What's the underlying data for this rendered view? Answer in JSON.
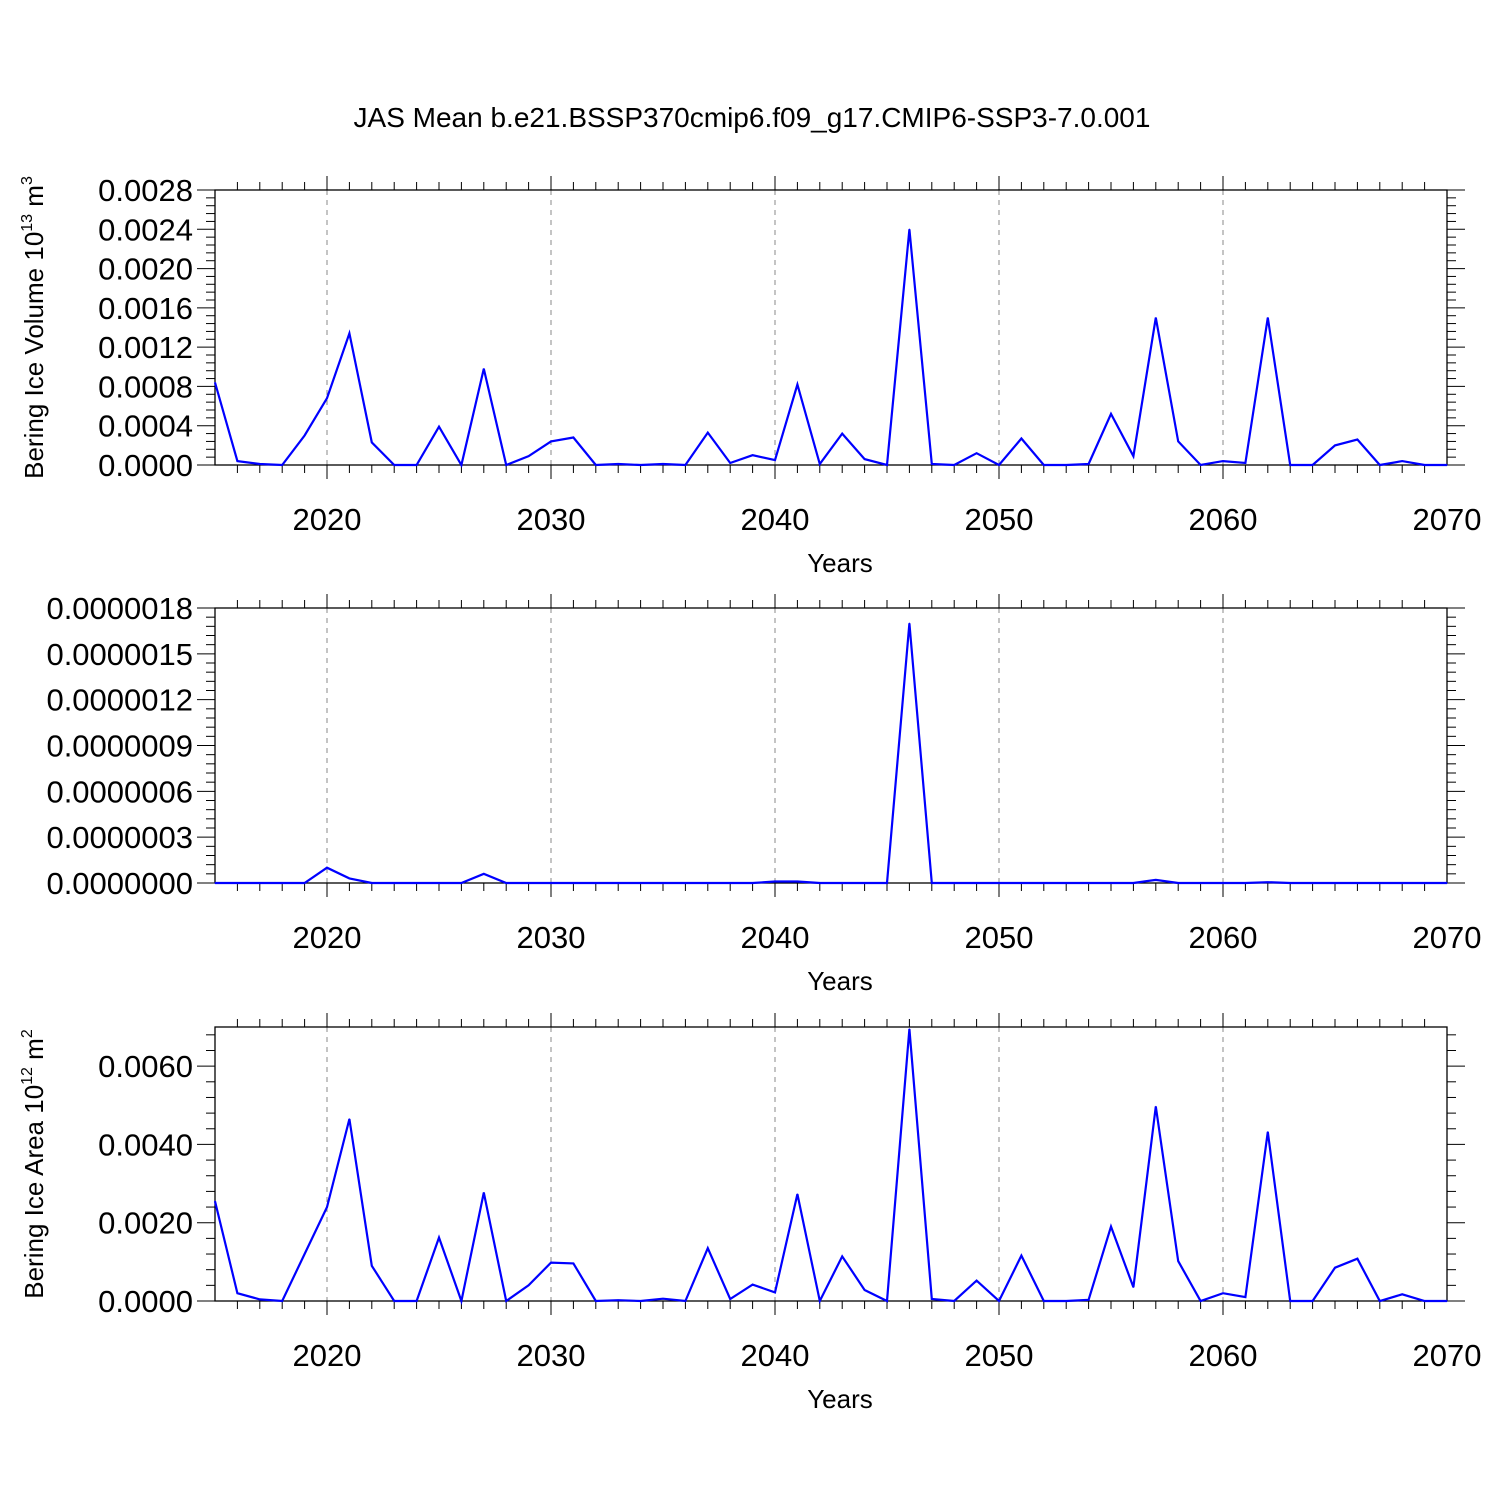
{
  "title": "JAS Mean b.e21.BSSP370cmip6.f09_g17.CMIP6-SSP3-7.0.001",
  "colors": {
    "line": "#0000ff",
    "axis": "#000000",
    "grid": "#888888"
  },
  "chart_data": [
    {
      "type": "line",
      "ylabel": {
        "text": "Bering Ice Volume 10",
        "sup": "13",
        "tail": " m",
        "sup2": "3"
      },
      "xlabel": "Years",
      "xlim": [
        2015,
        2070
      ],
      "ylim": [
        0,
        0.0028
      ],
      "yticks": [
        "0.0000",
        "0.0004",
        "0.0008",
        "0.0012",
        "0.0016",
        "0.0020",
        "0.0024",
        "0.0028"
      ],
      "xticks": [
        "2020",
        "2030",
        "2040",
        "2050",
        "2060",
        "2070"
      ],
      "grid": "vertical dashed at major x ticks",
      "series": [
        {
          "x": [
            2015,
            2016,
            2017,
            2018,
            2019,
            2020,
            2021,
            2022,
            2023,
            2024,
            2025,
            2026,
            2027,
            2028,
            2029,
            2030,
            2031,
            2032,
            2033,
            2034,
            2035,
            2036,
            2037,
            2038,
            2039,
            2040,
            2041,
            2042,
            2043,
            2044,
            2045,
            2046,
            2047,
            2048,
            2049,
            2050,
            2051,
            2052,
            2053,
            2054,
            2055,
            2056,
            2057,
            2058,
            2059,
            2060,
            2061,
            2062,
            2063,
            2064,
            2065,
            2066,
            2067,
            2068,
            2069,
            2070
          ],
          "y": [
            0.00084,
            4e-05,
            1e-05,
            0.0,
            0.0003,
            0.00068,
            0.00134,
            0.00023,
            0.0,
            0.0,
            0.00039,
            0.0,
            0.00098,
            0.0,
            9e-05,
            0.00024,
            0.00028,
            0.0,
            1e-05,
            0.0,
            1e-05,
            0.0,
            0.00033,
            2e-05,
            0.0001,
            5e-05,
            0.00082,
            1e-05,
            0.00032,
            6e-05,
            0.0,
            0.0024,
            1e-05,
            0.0,
            0.00012,
            0.0,
            0.00027,
            0.0,
            0.0,
            1e-05,
            0.00052,
            9e-05,
            0.0015,
            0.00024,
            0.0,
            4e-05,
            2e-05,
            0.0015,
            0.0,
            0.0,
            0.0002,
            0.00026,
            0.0,
            4e-05,
            0.0,
            0.0
          ]
        }
      ]
    },
    {
      "type": "line",
      "ylabel": {
        "text": "",
        "sup": "",
        "tail": "",
        "sup2": ""
      },
      "xlabel": "Years",
      "xlim": [
        2015,
        2070
      ],
      "ylim": [
        0,
        1.8e-06
      ],
      "yticks": [
        "0.0000000",
        "0.0000003",
        "0.0000006",
        "0.0000009",
        "0.0000012",
        "0.0000015",
        "0.0000018"
      ],
      "xticks": [
        "2020",
        "2030",
        "2040",
        "2050",
        "2060",
        "2070"
      ],
      "grid": "vertical dashed at major x ticks",
      "series": [
        {
          "x": [
            2015,
            2016,
            2017,
            2018,
            2019,
            2020,
            2021,
            2022,
            2023,
            2024,
            2025,
            2026,
            2027,
            2028,
            2029,
            2030,
            2031,
            2032,
            2033,
            2034,
            2035,
            2036,
            2037,
            2038,
            2039,
            2040,
            2041,
            2042,
            2043,
            2044,
            2045,
            2046,
            2047,
            2048,
            2049,
            2050,
            2051,
            2052,
            2053,
            2054,
            2055,
            2056,
            2057,
            2058,
            2059,
            2060,
            2061,
            2062,
            2063,
            2064,
            2065,
            2066,
            2067,
            2068,
            2069,
            2070
          ],
          "y": [
            0.0,
            0.0,
            0.0,
            0.0,
            0.0,
            1e-07,
            3e-08,
            0.0,
            0.0,
            0.0,
            0.0,
            0.0,
            6e-08,
            0.0,
            0.0,
            0.0,
            0.0,
            0.0,
            0.0,
            0.0,
            0.0,
            0.0,
            0.0,
            0.0,
            0.0,
            1e-08,
            1e-08,
            0.0,
            0.0,
            0.0,
            0.0,
            1.7e-06,
            0.0,
            0.0,
            0.0,
            0.0,
            0.0,
            0.0,
            0.0,
            0.0,
            0.0,
            0.0,
            2e-08,
            0.0,
            0.0,
            0.0,
            0.0,
            5e-09,
            0.0,
            0.0,
            0.0,
            0.0,
            0.0,
            0.0,
            0.0,
            0.0
          ]
        }
      ]
    },
    {
      "type": "line",
      "ylabel": {
        "text": "Bering Ice Area 10",
        "sup": "12",
        "tail": " m",
        "sup2": "2"
      },
      "xlabel": "Years",
      "xlim": [
        2015,
        2070
      ],
      "ylim": [
        0,
        0.007
      ],
      "yticks": [
        "0.0000",
        "0.0020",
        "0.0040",
        "0.0060"
      ],
      "xticks": [
        "2020",
        "2030",
        "2040",
        "2050",
        "2060",
        "2070"
      ],
      "grid": "vertical dashed at major x ticks",
      "series": [
        {
          "x": [
            2015,
            2016,
            2017,
            2018,
            2019,
            2020,
            2021,
            2022,
            2023,
            2024,
            2025,
            2026,
            2027,
            2028,
            2029,
            2030,
            2031,
            2032,
            2033,
            2034,
            2035,
            2036,
            2037,
            2038,
            2039,
            2040,
            2041,
            2042,
            2043,
            2044,
            2045,
            2046,
            2047,
            2048,
            2049,
            2050,
            2051,
            2052,
            2053,
            2054,
            2055,
            2056,
            2057,
            2058,
            2059,
            2060,
            2061,
            2062,
            2063,
            2064,
            2065,
            2066,
            2067,
            2068,
            2069,
            2070
          ],
          "y": [
            0.00255,
            0.0002,
            4e-05,
            0.0,
            0.0012,
            0.0024,
            0.00465,
            0.0009,
            0.0,
            0.0,
            0.00162,
            0.0,
            0.00277,
            0.0,
            0.0004,
            0.00098,
            0.00096,
            0.0,
            2e-05,
            0.0,
            6e-05,
            0.0,
            0.00135,
            5e-05,
            0.00042,
            0.00022,
            0.00273,
            0.0,
            0.00114,
            0.00028,
            0.0,
            0.00695,
            5e-05,
            0.0,
            0.00052,
            0.0,
            0.00116,
            0.0,
            0.0,
            3e-05,
            0.0019,
            0.00035,
            0.00497,
            0.00102,
            0.0,
            0.0002,
            0.0001,
            0.00432,
            0.0,
            0.0,
            0.00085,
            0.00108,
            0.0,
            0.00017,
            0.0,
            0.0
          ]
        }
      ]
    }
  ]
}
